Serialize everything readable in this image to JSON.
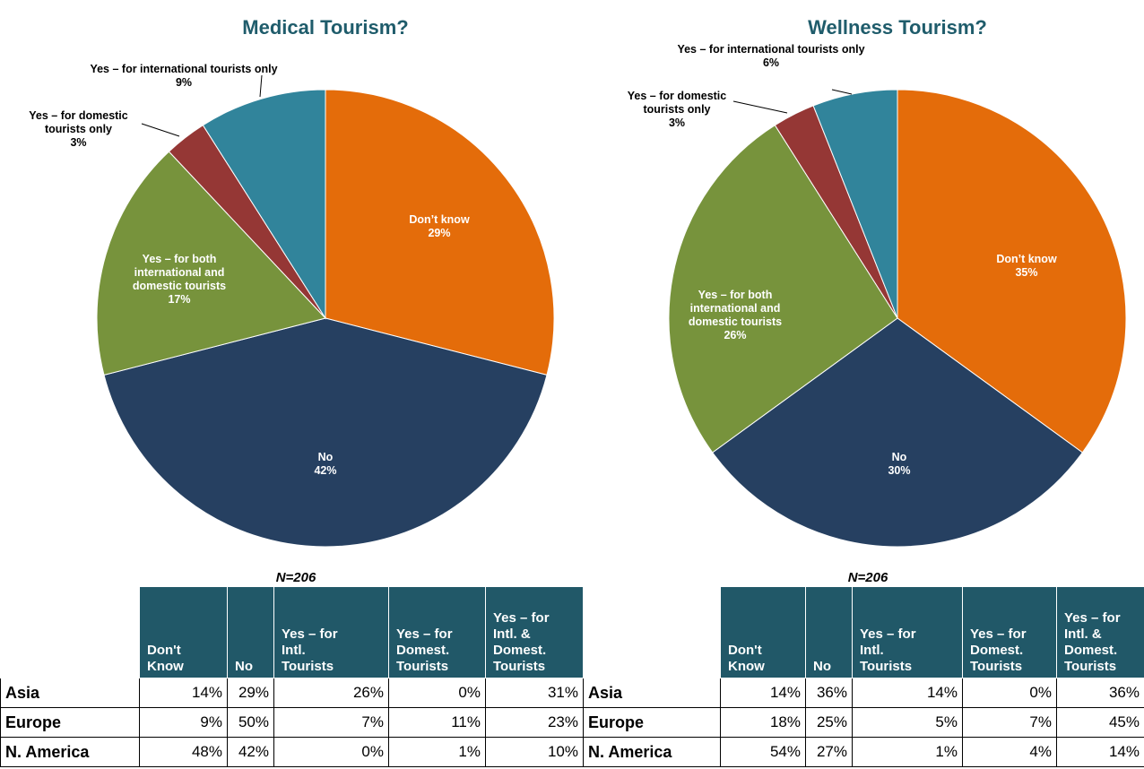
{
  "chart_data": [
    {
      "type": "pie",
      "title": "Medical Tourism?",
      "categories": [
        "Don’t know",
        "No",
        "Yes – for both international and domestic tourists",
        "Yes – for domestic tourists only",
        "Yes – for international tourists only"
      ],
      "values": [
        29,
        42,
        17,
        3,
        9
      ],
      "value_labels": [
        "29%",
        "42%",
        "17%",
        "3%",
        "9%"
      ],
      "colors": [
        "#e46c0a",
        "#264061",
        "#77933c",
        "#953735",
        "#31849b"
      ]
    },
    {
      "type": "pie",
      "title": "Wellness Tourism?",
      "categories": [
        "Don’t know",
        "No",
        "Yes – for both international and domestic tourists",
        "Yes – for domestic tourists only",
        "Yes – for international tourists only"
      ],
      "values": [
        35,
        30,
        26,
        3,
        6
      ],
      "value_labels": [
        "35%",
        "30%",
        "26%",
        "3%",
        "6%"
      ],
      "colors": [
        "#e46c0a",
        "#264061",
        "#77933c",
        "#953735",
        "#31849b"
      ]
    }
  ],
  "tables": [
    {
      "title": "N=206",
      "columns": [
        "Don't Know",
        "No",
        "Yes – for Intl. Tourists",
        "Yes – for Domest. Tourists",
        "Yes – for Intl. & Domest. Tourists"
      ],
      "rows": [
        [
          "Asia",
          "14%",
          "29%",
          "26%",
          "0%",
          "31%"
        ],
        [
          "Europe",
          "9%",
          "50%",
          "7%",
          "11%",
          "23%"
        ],
        [
          "N. America",
          "48%",
          "42%",
          "0%",
          "1%",
          "10%"
        ]
      ]
    },
    {
      "title": "N=206",
      "columns": [
        "Don't Know",
        "No",
        "Yes – for Intl. Tourists",
        "Yes – for Domest. Tourists",
        "Yes – for Intl. & Domest. Tourists"
      ],
      "rows": [
        [
          "Asia",
          "14%",
          "36%",
          "14%",
          "0%",
          "36%"
        ],
        [
          "Europe",
          "18%",
          "25%",
          "5%",
          "7%",
          "45%"
        ],
        [
          "N. America",
          "54%",
          "27%",
          "1%",
          "4%",
          "14%"
        ]
      ]
    }
  ]
}
